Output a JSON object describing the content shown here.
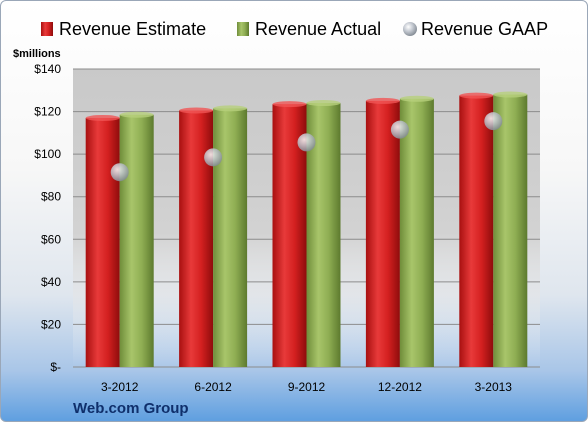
{
  "chart_data": {
    "type": "bar",
    "categories": [
      "3-2012",
      "6-2012",
      "9-2012",
      "12-2012",
      "3-2013"
    ],
    "series": [
      {
        "name": "Revenue Estimate",
        "kind": "bar",
        "color": "#d42020",
        "values": [
          117,
          120.5,
          123.5,
          125,
          127.5
        ]
      },
      {
        "name": "Revenue Actual",
        "kind": "bar",
        "color": "#8fae53",
        "values": [
          118.5,
          121.5,
          124,
          126,
          128
        ]
      },
      {
        "name": "Revenue GAAP",
        "kind": "marker",
        "color": "#b8bec6",
        "values": [
          91.5,
          98.5,
          105.5,
          111.5,
          115.5
        ]
      }
    ],
    "ylabel": "$millions",
    "ylim": [
      0,
      140
    ],
    "yticks": [
      0,
      20,
      40,
      60,
      80,
      100,
      120,
      140
    ],
    "ytick_labels": [
      "$-",
      "$20",
      "$40",
      "$60",
      "$80",
      "$100",
      "$120",
      "$140"
    ],
    "grid": true,
    "legend_position": "top",
    "company": "Web.com Group"
  }
}
